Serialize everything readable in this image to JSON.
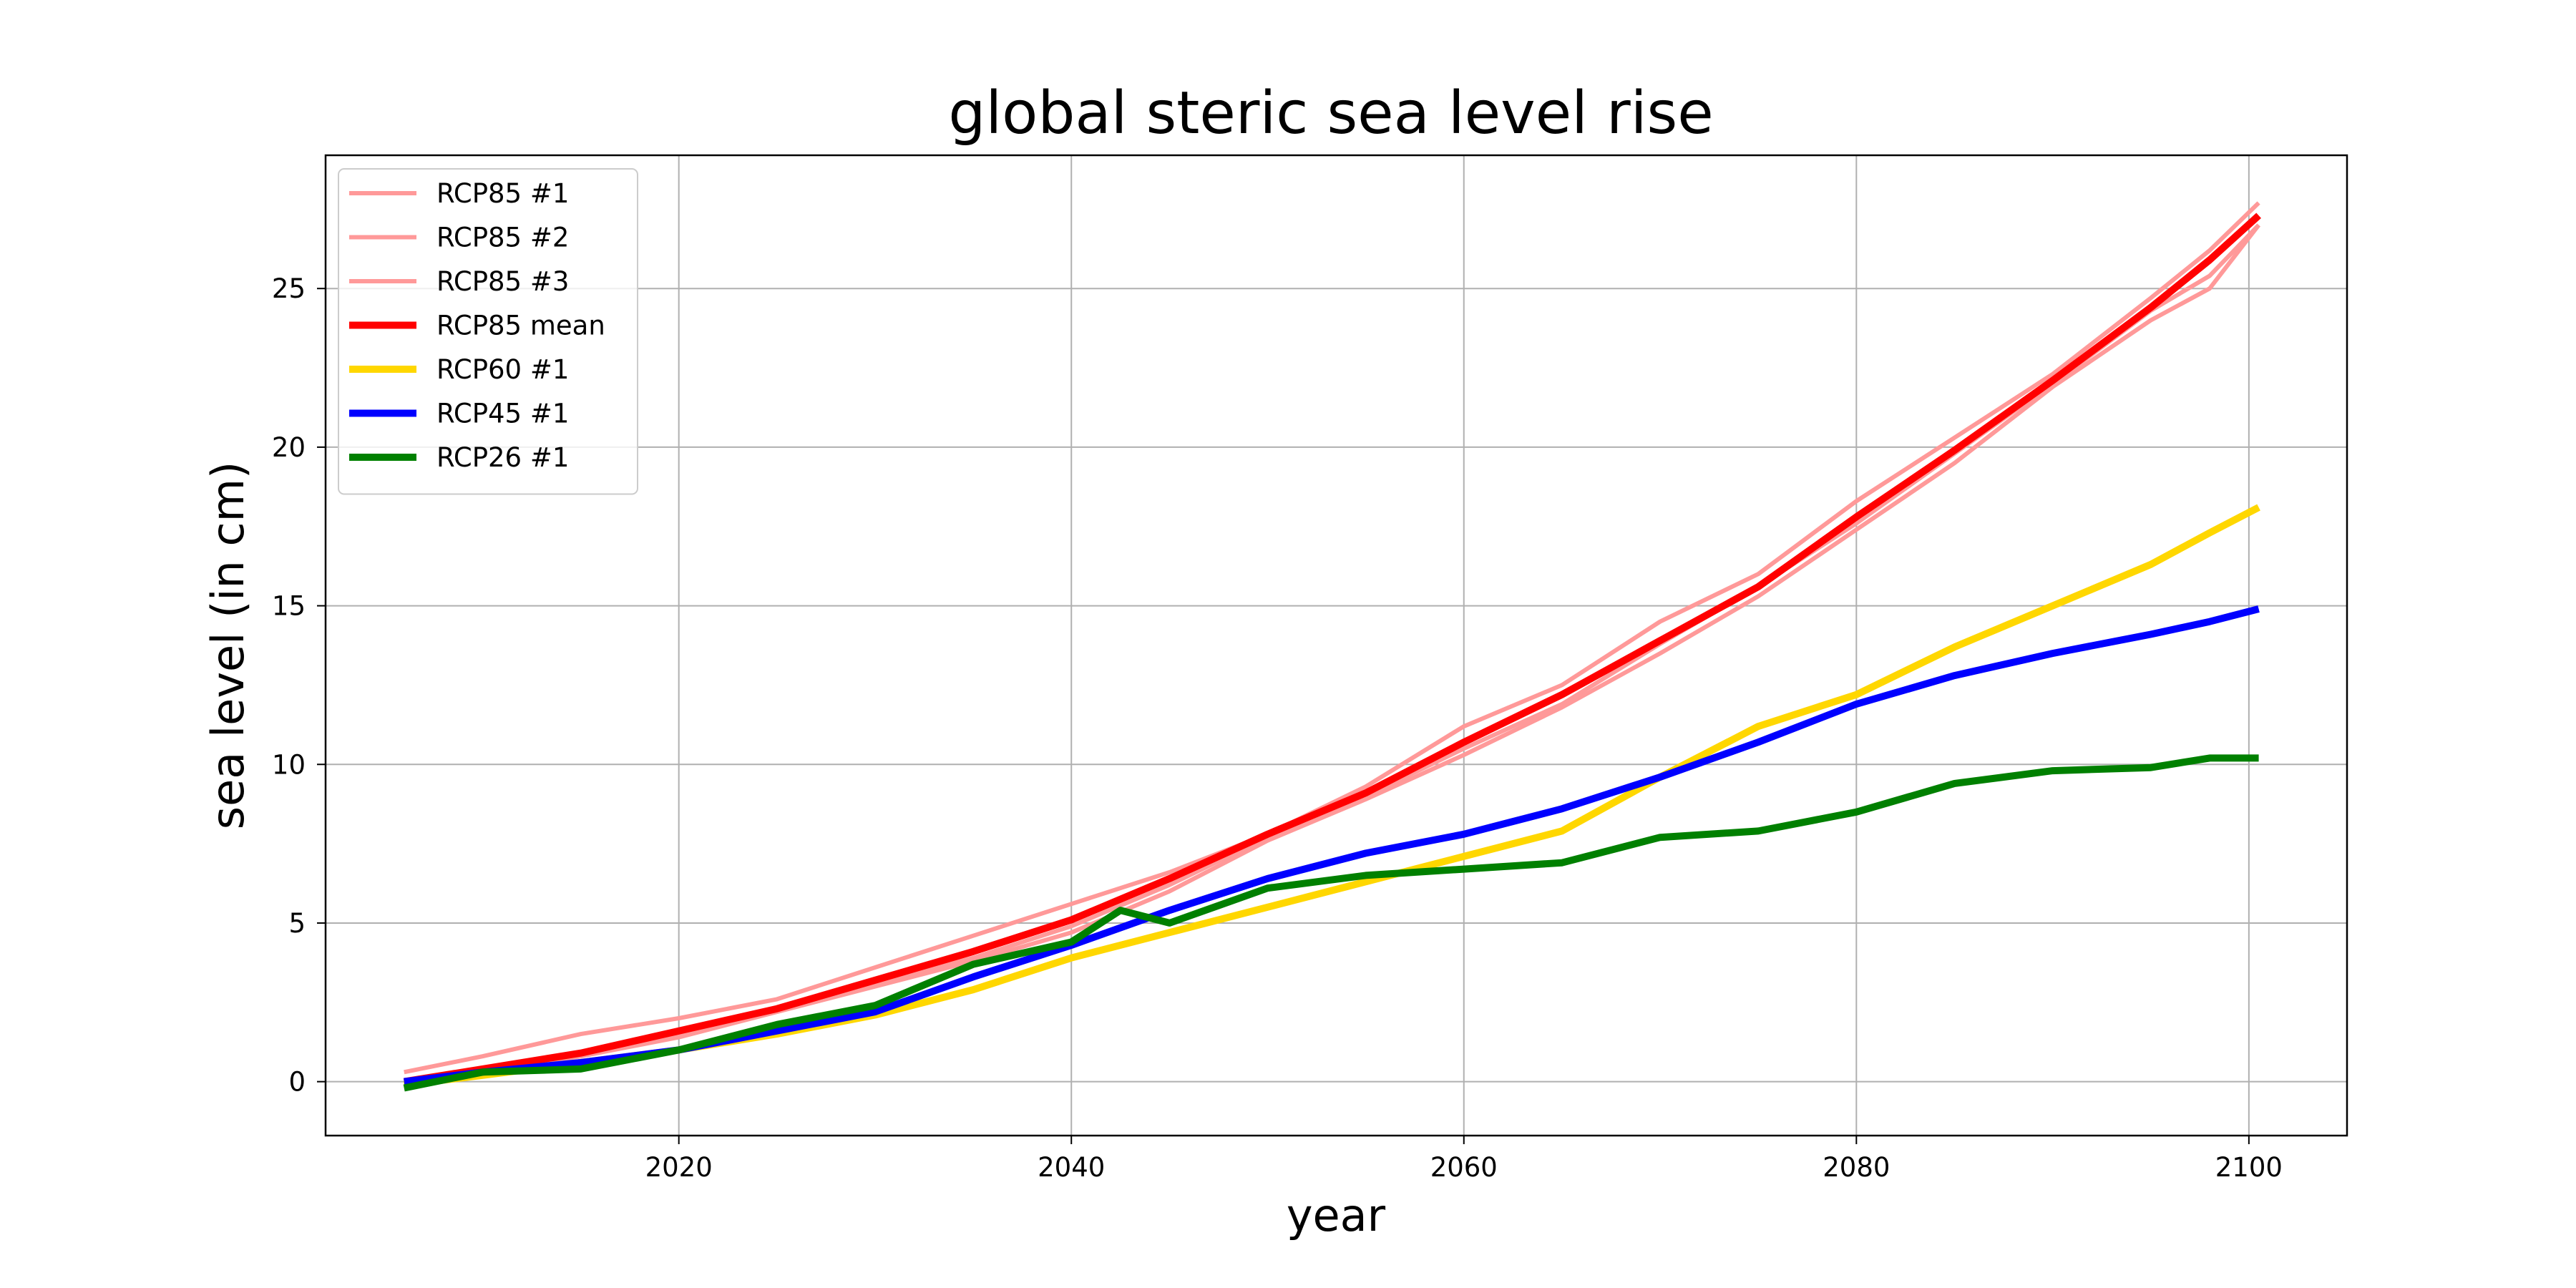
{
  "chart_data": {
    "type": "line",
    "title": "global steric sea level rise",
    "xlabel": "year",
    "ylabel": "sea level (in cm)",
    "xlim": [
      2002,
      2105
    ],
    "ylim": [
      -1.7,
      29.2
    ],
    "xticks": [
      2020,
      2040,
      2060,
      2080,
      2100
    ],
    "yticks": [
      0,
      5,
      10,
      15,
      20,
      25
    ],
    "grid": true,
    "legend_position": "top-left",
    "series": [
      {
        "name": "RCP85 #1",
        "color": "#ff9999",
        "width": "thin",
        "x": [
          2006,
          2010,
          2015,
          2020,
          2025,
          2030,
          2035,
          2040,
          2045,
          2050,
          2055,
          2060,
          2065,
          2070,
          2075,
          2080,
          2085,
          2090,
          2095,
          2098,
          2100.5
        ],
        "y": [
          0.3,
          0.8,
          1.5,
          2.0,
          2.6,
          3.6,
          4.6,
          5.6,
          6.6,
          7.8,
          9.3,
          11.2,
          12.5,
          14.5,
          16.0,
          18.3,
          20.3,
          22.3,
          24.7,
          26.2,
          27.7
        ]
      },
      {
        "name": "RCP85 #2",
        "color": "#ff9999",
        "width": "thin",
        "x": [
          2006,
          2010,
          2015,
          2020,
          2025,
          2030,
          2035,
          2040,
          2045,
          2050,
          2055,
          2060,
          2065,
          2070,
          2075,
          2080,
          2085,
          2090,
          2095,
          2098,
          2100.5
        ],
        "y": [
          0.0,
          0.4,
          0.9,
          1.5,
          2.3,
          3.1,
          3.9,
          4.9,
          6.2,
          7.7,
          9.0,
          10.5,
          11.9,
          13.8,
          15.6,
          17.6,
          19.8,
          22.0,
          24.3,
          25.4,
          27.0
        ]
      },
      {
        "name": "RCP85 #3",
        "color": "#ff9999",
        "width": "thin",
        "x": [
          2006,
          2010,
          2015,
          2020,
          2025,
          2030,
          2035,
          2040,
          2045,
          2050,
          2055,
          2060,
          2065,
          2070,
          2075,
          2080,
          2085,
          2090,
          2095,
          2098,
          2100.5
        ],
        "y": [
          0.0,
          0.3,
          0.8,
          1.4,
          2.2,
          3.0,
          3.8,
          4.7,
          6.0,
          7.6,
          8.9,
          10.3,
          11.8,
          13.5,
          15.3,
          17.4,
          19.5,
          21.9,
          24.0,
          25.0,
          27.0
        ]
      },
      {
        "name": "RCP85 mean",
        "color": "#ff0000",
        "width": "thick",
        "x": [
          2006,
          2010,
          2015,
          2020,
          2025,
          2030,
          2035,
          2040,
          2045,
          2050,
          2055,
          2060,
          2065,
          2070,
          2075,
          2080,
          2085,
          2090,
          2095,
          2098,
          2100.5
        ],
        "y": [
          0.0,
          0.4,
          0.9,
          1.6,
          2.3,
          3.2,
          4.1,
          5.1,
          6.4,
          7.8,
          9.1,
          10.7,
          12.2,
          13.9,
          15.6,
          17.8,
          19.9,
          22.1,
          24.4,
          25.9,
          27.3
        ]
      },
      {
        "name": "RCP60 #1",
        "color": "#ffd700",
        "width": "thick",
        "x": [
          2006,
          2010,
          2015,
          2020,
          2025,
          2030,
          2035,
          2040,
          2045,
          2050,
          2055,
          2060,
          2065,
          2070,
          2075,
          2080,
          2085,
          2090,
          2095,
          2098,
          2100.5
        ],
        "y": [
          -0.1,
          0.2,
          0.6,
          1.0,
          1.5,
          2.1,
          2.9,
          3.9,
          4.7,
          5.5,
          6.3,
          7.1,
          7.9,
          9.6,
          11.2,
          12.2,
          13.7,
          15.0,
          16.3,
          17.3,
          18.1
        ]
      },
      {
        "name": "RCP45 #1",
        "color": "#0000ff",
        "width": "thick",
        "x": [
          2006,
          2010,
          2015,
          2020,
          2025,
          2030,
          2035,
          2040,
          2045,
          2050,
          2055,
          2060,
          2065,
          2070,
          2075,
          2080,
          2085,
          2090,
          2095,
          2098,
          2100.5
        ],
        "y": [
          0.0,
          0.3,
          0.6,
          1.0,
          1.6,
          2.2,
          3.3,
          4.3,
          5.4,
          6.4,
          7.2,
          7.8,
          8.6,
          9.6,
          10.7,
          11.9,
          12.8,
          13.5,
          14.1,
          14.5,
          14.9
        ]
      },
      {
        "name": "RCP26 #1",
        "color": "#008000",
        "width": "thick",
        "x": [
          2006,
          2010,
          2015,
          2020,
          2025,
          2030,
          2035,
          2040,
          2042.5,
          2045,
          2050,
          2055,
          2060,
          2065,
          2070,
          2075,
          2080,
          2085,
          2090,
          2095,
          2098,
          2100.5
        ],
        "y": [
          -0.2,
          0.3,
          0.4,
          1.0,
          1.8,
          2.4,
          3.7,
          4.4,
          5.4,
          5.0,
          6.1,
          6.5,
          6.7,
          6.9,
          7.7,
          7.9,
          8.5,
          9.4,
          9.8,
          9.9,
          10.2,
          10.2
        ]
      }
    ]
  }
}
